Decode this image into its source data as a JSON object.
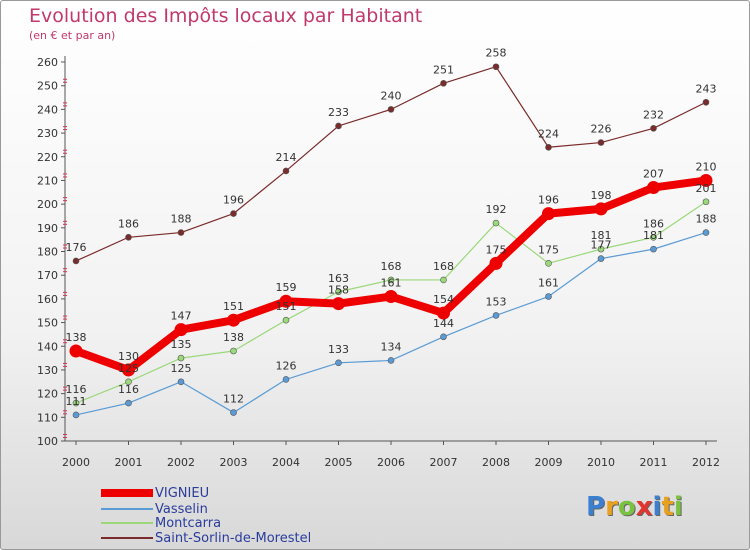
{
  "header": {
    "title": "Evolution des Impôts locaux par Habitant",
    "subtitle": "(en € et par an)"
  },
  "logo": {
    "text": "Proxiti",
    "letters": [
      {
        "ch": "P",
        "color": "#3b7fd1"
      },
      {
        "ch": "r",
        "color": "#e8a020"
      },
      {
        "ch": "o",
        "color": "#7cc242"
      },
      {
        "ch": "x",
        "color": "#e3342f"
      },
      {
        "ch": "i",
        "color": "#3b7fd1"
      },
      {
        "ch": "t",
        "color": "#e8a020"
      },
      {
        "ch": "i",
        "color": "#7cc242"
      }
    ]
  },
  "chart_data": {
    "type": "line",
    "x": [
      2000,
      2001,
      2002,
      2003,
      2004,
      2005,
      2006,
      2007,
      2008,
      2009,
      2010,
      2011,
      2012
    ],
    "ylim": [
      100,
      260
    ],
    "yticks": [
      100,
      110,
      120,
      130,
      140,
      150,
      160,
      170,
      180,
      190,
      200,
      210,
      220,
      230,
      240,
      250,
      260
    ],
    "grid": false,
    "legend_position": "bottom-left",
    "series": [
      {
        "name": "VIGNIEU",
        "color": "#ee0000",
        "values": [
          138,
          130,
          147,
          151,
          159,
          158,
          161,
          154,
          175,
          196,
          198,
          207,
          210
        ]
      },
      {
        "name": "Vasselin",
        "color": "#5b9bd5",
        "values": [
          111,
          116,
          125,
          112,
          126,
          133,
          134,
          144,
          153,
          161,
          177,
          181,
          188
        ]
      },
      {
        "name": "Montcarra",
        "color": "#9bd87a",
        "values": [
          116,
          125,
          135,
          138,
          151,
          163,
          168,
          168,
          192,
          175,
          181,
          186,
          201
        ]
      },
      {
        "name": "Saint-Sorlin-de-Morestel",
        "color": "#7a2b2b",
        "values": [
          176,
          186,
          188,
          196,
          214,
          233,
          240,
          251,
          258,
          224,
          226,
          232,
          243
        ]
      }
    ]
  }
}
